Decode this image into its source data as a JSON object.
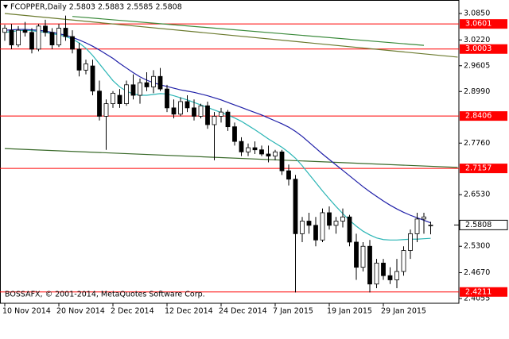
{
  "chart_data": {
    "type": "candlestick",
    "title": "FCOPPER,Daily  2.5803 2.5883 2.5585 2.5808",
    "copyright": "BOSSAFX, © 2001-2014, MetaQuotes Software Corp.",
    "categories": [
      "10 Nov 2014",
      null,
      null,
      null,
      null,
      null,
      null,
      null,
      "20 Nov 2014",
      null,
      null,
      null,
      null,
      null,
      null,
      null,
      "2 Dec 2014",
      null,
      null,
      null,
      null,
      null,
      null,
      null,
      "12 Dec 2014",
      null,
      null,
      null,
      null,
      null,
      null,
      null,
      "24 Dec 2014",
      null,
      null,
      null,
      null,
      null,
      null,
      null,
      "7 Jan 2015",
      null,
      null,
      null,
      null,
      null,
      null,
      null,
      "19 Jan 2015",
      null,
      null,
      null,
      null,
      null,
      null,
      null,
      "29 Jan 2015",
      null,
      null,
      null,
      null,
      null,
      null,
      null
    ],
    "open": [
      3.04,
      3.045,
      3.01,
      3.045,
      3.04,
      3.0,
      3.055,
      3.04,
      3.01,
      3.05,
      3.03,
      3.0,
      2.95,
      2.96,
      2.9,
      2.84,
      2.87,
      2.89,
      2.87,
      2.915,
      2.89,
      2.92,
      2.91,
      2.935,
      2.905,
      2.86,
      2.845,
      2.875,
      2.86,
      2.84,
      2.865,
      2.82,
      2.84,
      2.85,
      2.815,
      2.78,
      2.755,
      2.765,
      2.76,
      2.75,
      2.745,
      2.755,
      2.71,
      2.69,
      2.56,
      2.59,
      2.58,
      2.545,
      2.61,
      2.58,
      2.59,
      2.6,
      2.54,
      2.48,
      2.53,
      2.44,
      2.49,
      2.46,
      2.45,
      2.47,
      2.52,
      2.56,
      2.595,
      2.5803
    ],
    "high": [
      3.058,
      3.06,
      3.055,
      3.065,
      3.05,
      3.06,
      3.07,
      3.05,
      3.06,
      3.08,
      3.045,
      3.015,
      2.975,
      2.975,
      2.925,
      2.88,
      2.9,
      2.905,
      2.925,
      2.94,
      2.93,
      2.945,
      2.95,
      2.955,
      2.915,
      2.88,
      2.885,
      2.89,
      2.88,
      2.87,
      2.875,
      2.85,
      2.86,
      2.855,
      2.825,
      2.79,
      2.775,
      2.78,
      2.77,
      2.77,
      2.76,
      2.76,
      2.725,
      2.7,
      2.6,
      2.61,
      2.6,
      2.62,
      2.625,
      2.6,
      2.62,
      2.605,
      2.56,
      2.54,
      2.545,
      2.5,
      2.5,
      2.48,
      2.5,
      2.53,
      2.57,
      2.61,
      2.61,
      2.5883
    ],
    "low": [
      3.02,
      3.0,
      3.005,
      3.03,
      2.99,
      2.995,
      3.03,
      3.0,
      3.005,
      3.02,
      2.99,
      2.935,
      2.94,
      2.89,
      2.83,
      2.76,
      2.86,
      2.86,
      2.865,
      2.88,
      2.87,
      2.9,
      2.895,
      2.9,
      2.85,
      2.835,
      2.84,
      2.85,
      2.83,
      2.835,
      2.81,
      2.735,
      2.825,
      2.805,
      2.77,
      2.745,
      2.745,
      2.75,
      2.745,
      2.73,
      2.735,
      2.7,
      2.675,
      2.42,
      2.54,
      2.56,
      2.53,
      2.54,
      2.57,
      2.56,
      2.575,
      2.53,
      2.45,
      2.47,
      2.42,
      2.43,
      2.45,
      2.44,
      2.43,
      2.46,
      2.5,
      2.54,
      2.56,
      2.5585
    ],
    "close": [
      3.05,
      3.01,
      3.045,
      3.04,
      3.0,
      3.055,
      3.04,
      3.01,
      3.05,
      3.03,
      3.0,
      2.95,
      2.965,
      2.9,
      2.84,
      2.87,
      2.895,
      2.87,
      2.915,
      2.89,
      2.92,
      2.91,
      2.935,
      2.905,
      2.86,
      2.845,
      2.875,
      2.86,
      2.84,
      2.865,
      2.82,
      2.84,
      2.85,
      2.815,
      2.78,
      2.755,
      2.765,
      2.76,
      2.75,
      2.745,
      2.755,
      2.71,
      2.69,
      2.56,
      2.59,
      2.58,
      2.545,
      2.61,
      2.58,
      2.59,
      2.6,
      2.54,
      2.48,
      2.53,
      2.44,
      2.49,
      2.46,
      2.45,
      2.47,
      2.52,
      2.56,
      2.595,
      2.6,
      2.5808
    ],
    "bull_color": "#ffffff",
    "bear_color": "#000000",
    "moving_averages": [
      {
        "color": "#1f1fa8",
        "values": [
          3.045,
          3.046,
          3.047,
          3.047,
          3.046,
          3.045,
          3.043,
          3.04,
          3.037,
          3.033,
          3.028,
          3.022,
          3.015,
          3.007,
          2.998,
          2.988,
          2.978,
          2.966,
          2.955,
          2.944,
          2.934,
          2.926,
          2.92,
          2.915,
          2.911,
          2.907,
          2.903,
          2.9,
          2.897,
          2.893,
          2.889,
          2.884,
          2.879,
          2.873,
          2.867,
          2.861,
          2.855,
          2.849,
          2.843,
          2.836,
          2.829,
          2.822,
          2.814,
          2.804,
          2.792,
          2.778,
          2.764,
          2.75,
          2.737,
          2.724,
          2.711,
          2.698,
          2.685,
          2.672,
          2.66,
          2.649,
          2.638,
          2.628,
          2.619,
          2.611,
          2.604,
          2.598,
          2.592,
          2.586
        ]
      },
      {
        "color": "#2bb5b5",
        "values": [
          3.04,
          3.042,
          3.044,
          3.045,
          3.044,
          3.042,
          3.04,
          3.037,
          3.034,
          3.03,
          3.024,
          3.015,
          3.002,
          2.985,
          2.965,
          2.945,
          2.925,
          2.91,
          2.9,
          2.893,
          2.89,
          2.89,
          2.892,
          2.894,
          2.893,
          2.889,
          2.884,
          2.879,
          2.873,
          2.867,
          2.861,
          2.855,
          2.849,
          2.843,
          2.836,
          2.828,
          2.818,
          2.808,
          2.797,
          2.786,
          2.776,
          2.766,
          2.754,
          2.74,
          2.722,
          2.702,
          2.682,
          2.662,
          2.643,
          2.625,
          2.608,
          2.592,
          2.578,
          2.566,
          2.557,
          2.55,
          2.546,
          2.545,
          2.545,
          2.546,
          2.547,
          2.547,
          2.548,
          2.549
        ]
      }
    ],
    "trendlines": [
      {
        "color": "#3a8a3a",
        "x": [
          10,
          62
        ],
        "y": [
          3.078,
          3.009
        ]
      },
      {
        "color": "#6b7a2e",
        "x": [
          0,
          67
        ],
        "y": [
          3.085,
          2.981
        ]
      },
      {
        "color": "#3a6a2a",
        "x": [
          0,
          67
        ],
        "y": [
          2.763,
          2.718
        ]
      }
    ],
    "levels": {
      "color": "#ff0000",
      "values": [
        3.0601,
        3.0003,
        2.8406,
        2.7157,
        2.4211
      ]
    },
    "last_price": 2.5808,
    "ylim": [
      2.4055,
      3.085
    ],
    "yticks": [
      {
        "value": 3.085,
        "label": "3.0850"
      },
      {
        "value": 3.022,
        "label": "3.0220"
      },
      2.9605,
      {
        "value": 2.899,
        "label": "2.8990"
      },
      {
        "value": 2.776,
        "label": "2.7760"
      },
      {
        "value": 2.653,
        "label": "2.6530"
      },
      {
        "value": 2.53,
        "label": "2.5300"
      },
      {
        "value": 2.467,
        "label": "2.4670"
      },
      2.4055
    ]
  }
}
